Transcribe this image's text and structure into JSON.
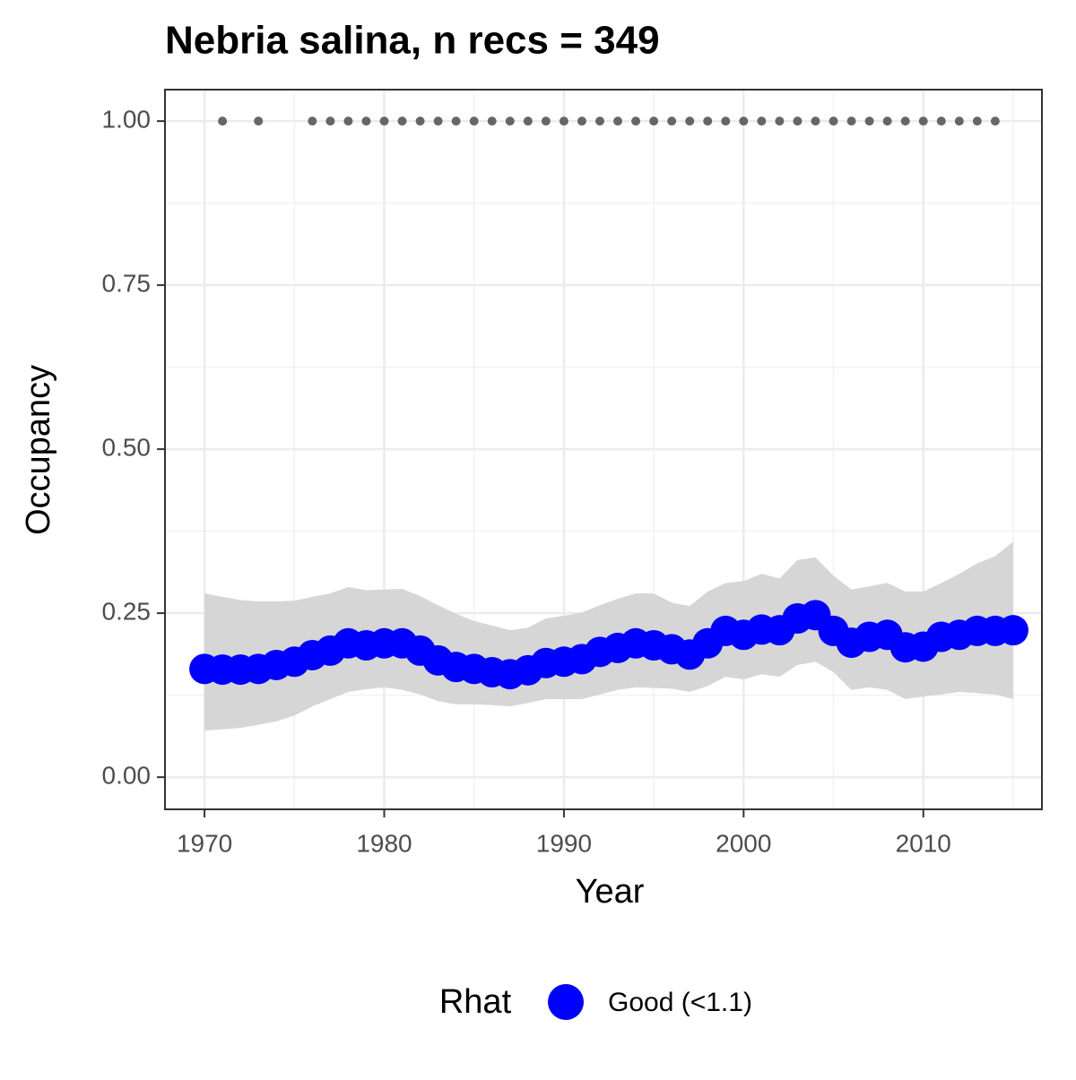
{
  "chart_data": {
    "type": "line",
    "title": "Nebria salina, n recs = 349",
    "x_label": "Year",
    "y_label": "Occupancy",
    "x": [
      1970,
      1971,
      1972,
      1973,
      1974,
      1975,
      1976,
      1977,
      1978,
      1979,
      1980,
      1981,
      1982,
      1983,
      1984,
      1985,
      1986,
      1987,
      1988,
      1989,
      1990,
      1991,
      1992,
      1993,
      1994,
      1995,
      1996,
      1997,
      1998,
      1999,
      2000,
      2001,
      2002,
      2003,
      2004,
      2005,
      2006,
      2007,
      2008,
      2009,
      2010,
      2011,
      2012,
      2013,
      2014,
      2015
    ],
    "series": [
      {
        "name": "Good (<1.1)",
        "color": "#0000ff",
        "values": [
          0.165,
          0.164,
          0.164,
          0.165,
          0.171,
          0.176,
          0.186,
          0.193,
          0.204,
          0.201,
          0.204,
          0.204,
          0.193,
          0.178,
          0.168,
          0.165,
          0.16,
          0.157,
          0.163,
          0.174,
          0.176,
          0.18,
          0.191,
          0.197,
          0.204,
          0.201,
          0.195,
          0.187,
          0.204,
          0.223,
          0.217,
          0.225,
          0.224,
          0.242,
          0.247,
          0.223,
          0.205,
          0.214,
          0.217,
          0.198,
          0.199,
          0.214,
          0.217,
          0.223,
          0.223,
          0.224
        ]
      }
    ],
    "band": {
      "color": "#d6d6d6",
      "upper": [
        0.28,
        0.275,
        0.27,
        0.268,
        0.268,
        0.269,
        0.275,
        0.28,
        0.29,
        0.285,
        0.286,
        0.287,
        0.276,
        0.262,
        0.249,
        0.238,
        0.231,
        0.224,
        0.228,
        0.242,
        0.246,
        0.251,
        0.262,
        0.272,
        0.28,
        0.28,
        0.266,
        0.261,
        0.283,
        0.296,
        0.299,
        0.31,
        0.303,
        0.331,
        0.335,
        0.307,
        0.286,
        0.291,
        0.296,
        0.283,
        0.283,
        0.296,
        0.31,
        0.326,
        0.337,
        0.359
      ],
      "lower": [
        0.071,
        0.073,
        0.075,
        0.08,
        0.085,
        0.094,
        0.108,
        0.119,
        0.13,
        0.134,
        0.137,
        0.133,
        0.126,
        0.116,
        0.111,
        0.111,
        0.11,
        0.108,
        0.113,
        0.119,
        0.119,
        0.119,
        0.126,
        0.133,
        0.137,
        0.136,
        0.135,
        0.13,
        0.139,
        0.153,
        0.149,
        0.157,
        0.153,
        0.171,
        0.176,
        0.16,
        0.133,
        0.137,
        0.133,
        0.119,
        0.123,
        0.126,
        0.13,
        0.128,
        0.126,
        0.119
      ]
    },
    "records": {
      "color": "#666666",
      "x": [
        1971,
        1973,
        1976,
        1977,
        1978,
        1979,
        1980,
        1981,
        1982,
        1983,
        1984,
        1985,
        1986,
        1987,
        1988,
        1989,
        1990,
        1991,
        1992,
        1993,
        1994,
        1995,
        1996,
        1997,
        1998,
        1999,
        2000,
        2001,
        2002,
        2003,
        2004,
        2005,
        2006,
        2007,
        2008,
        2009,
        2010,
        2011,
        2012,
        2013,
        2014
      ],
      "values": [
        1,
        1,
        1,
        1,
        1,
        1,
        1,
        1,
        1,
        1,
        1,
        1,
        1,
        1,
        1,
        1,
        1,
        1,
        1,
        1,
        1,
        1,
        1,
        1,
        1,
        1,
        1,
        1,
        1,
        1,
        1,
        1,
        1,
        1,
        1,
        1,
        1,
        1,
        1,
        1,
        1
      ]
    },
    "xlim": [
      1967.8,
      2016.6
    ],
    "ylim": [
      -0.049,
      1.048
    ],
    "xticks": [
      1970,
      1980,
      1990,
      2000,
      2010
    ],
    "yticks": [
      {
        "value": 0,
        "label": "0.00"
      },
      {
        "value": 0.25,
        "label": "0.25"
      },
      {
        "value": 0.5,
        "label": "0.50"
      },
      {
        "value": 0.75,
        "label": "0.75"
      },
      {
        "value": 1,
        "label": "1.00"
      }
    ],
    "grid": true,
    "legend_title": "Rhat",
    "legend_position": "bottom"
  }
}
